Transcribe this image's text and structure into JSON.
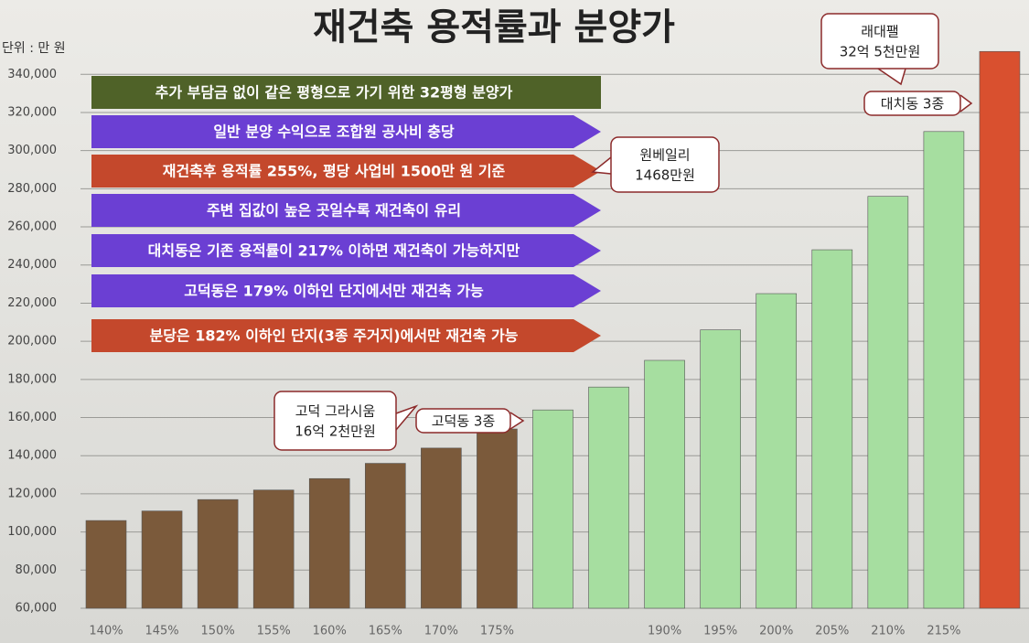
{
  "chart_data": {
    "type": "bar",
    "title": "재건축 용적률과 분양가",
    "unit_label": "단위 : 만 원",
    "categories": [
      "140%",
      "145%",
      "150%",
      "155%",
      "160%",
      "165%",
      "170%",
      "175%",
      null,
      null,
      "190%",
      "195%",
      "200%",
      "205%",
      "210%",
      "215%",
      null
    ],
    "values": [
      106000,
      111000,
      117000,
      122000,
      128000,
      136000,
      144000,
      154000,
      164000,
      176000,
      190000,
      206000,
      225000,
      248000,
      276000,
      310000,
      352000
    ],
    "colors": [
      "#7b5a3b",
      "#7b5a3b",
      "#7b5a3b",
      "#7b5a3b",
      "#7b5a3b",
      "#7b5a3b",
      "#7b5a3b",
      "#7b5a3b",
      "#a6dea0",
      "#a6dea0",
      "#a6dea0",
      "#a6dea0",
      "#a6dea0",
      "#a6dea0",
      "#a6dea0",
      "#a6dea0",
      "#d9502f"
    ],
    "ylim": [
      60000,
      355000
    ],
    "yticks": [
      {
        "value": 60000,
        "label": "60,000"
      },
      {
        "value": 80000,
        "label": "80,000"
      },
      {
        "value": 100000,
        "label": "100,000"
      },
      {
        "value": 120000,
        "label": "120,000"
      },
      {
        "value": 140000,
        "label": "140,000"
      },
      {
        "value": 160000,
        "label": "160,000"
      },
      {
        "value": 180000,
        "label": "180,000"
      },
      {
        "value": 200000,
        "label": "200,000"
      },
      {
        "value": 220000,
        "label": "220,000"
      },
      {
        "value": 240000,
        "label": "240,000"
      },
      {
        "value": 260000,
        "label": "260,000"
      },
      {
        "value": 280000,
        "label": "280,000"
      },
      {
        "value": 300000,
        "label": "300,000"
      },
      {
        "value": 320000,
        "label": "320,000"
      },
      {
        "value": 340000,
        "label": "340,000"
      }
    ],
    "grid": true,
    "banners": [
      {
        "text": "추가 부담금 없이 같은 평형으로 가기 위한 32평형 분양가",
        "color": "#4f6228"
      },
      {
        "text": "일반 분양 수익으로 조합원 공사비 충당",
        "color": "#6b3fd3"
      },
      {
        "text": "재건축후 용적률 255%, 평당 사업비 1500만 원 기준",
        "color": "#c4482c"
      },
      {
        "text": "주변 집값이 높은 곳일수록 재건축이 유리",
        "color": "#6b3fd3"
      },
      {
        "text": "대치동은 기존 용적률이 217% 이하면 재건축이 가능하지만",
        "color": "#6b3fd3"
      },
      {
        "text": "고덕동은 179% 이하인 단지에서만 재건축 가능",
        "color": "#6b3fd3"
      },
      {
        "text": "분당은 182% 이하인 단지(3종 주거지)에서만 재건축 가능",
        "color": "#c4482c"
      }
    ],
    "callouts": [
      {
        "lines": [
          "래대팰",
          "32억 5천만원"
        ]
      },
      {
        "lines": [
          "대치동 3종"
        ]
      },
      {
        "lines": [
          "원베일리",
          "1468만원"
        ]
      },
      {
        "lines": [
          "고덕 그라시움",
          "16억 2천만원"
        ]
      },
      {
        "lines": [
          "고덕동 3종"
        ]
      }
    ]
  }
}
